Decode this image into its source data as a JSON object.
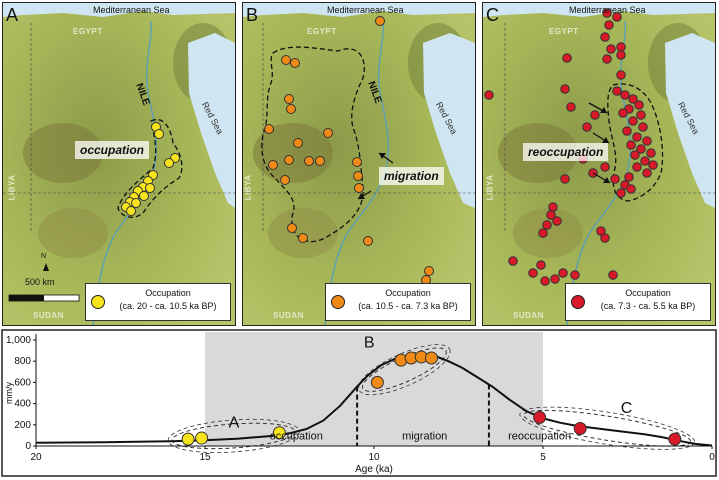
{
  "panels": [
    {
      "letter": "A",
      "sea_label": "Mediterranean Sea",
      "countries": {
        "egypt": "EGYPT",
        "libya": "LIBYA",
        "sudan": "SUDAN"
      },
      "red_sea": "Red Sea",
      "river": "NILE",
      "tag": "occupation",
      "scale_label": "500 km",
      "north": "N",
      "legend": {
        "title": "Occupation",
        "range": "(ca. 20 - ca. 10.5 ka BP)",
        "color": "#f7e41c"
      }
    },
    {
      "letter": "B",
      "sea_label": "Mediterranean Sea",
      "countries": {
        "egypt": "EGYPT",
        "libya": "LIBYA",
        "sudan": "SUDAN"
      },
      "red_sea": "Red Sea",
      "river": "NILE",
      "tag": "migration",
      "legend": {
        "title": "Occupation",
        "range": "(ca. 10.5 - ca. 7.3 ka BP)",
        "color": "#f08a16"
      }
    },
    {
      "letter": "C",
      "sea_label": "Mediterranean Sea",
      "countries": {
        "egypt": "EGYPT",
        "libya": "LIBYA",
        "sudan": "SUDAN"
      },
      "red_sea": "Red Sea",
      "tag": "reoccupation",
      "legend": {
        "title": "Occupation",
        "range": "(ca. 7.3 - ca. 5.5 ka BP)",
        "color": "#d8192a"
      }
    }
  ],
  "chart_data": {
    "type": "line",
    "xlabel": "Age (ka)",
    "ylabel": "mm/y",
    "xlim": [
      20,
      0
    ],
    "ylim": [
      0,
      1000
    ],
    "x_ticks": [
      "20",
      "15",
      "10",
      "5",
      "0"
    ],
    "y_ticks": [
      "0",
      "200",
      "400",
      "600",
      "800",
      "1,000"
    ],
    "shaded_range": [
      15,
      5
    ],
    "curve": {
      "x": [
        20,
        18,
        16,
        15,
        14,
        13,
        12.5,
        12,
        11.5,
        11,
        10.5,
        10.2,
        9.8,
        9.4,
        9,
        8.6,
        8.2,
        7.8,
        7.4,
        7,
        6.5,
        6,
        5.5,
        5,
        4.5,
        4,
        3,
        2,
        1.5,
        1,
        0.5,
        0
      ],
      "y": [
        30,
        35,
        45,
        55,
        70,
        95,
        120,
        160,
        240,
        380,
        560,
        660,
        760,
        820,
        850,
        860,
        850,
        800,
        740,
        660,
        560,
        440,
        330,
        260,
        220,
        190,
        150,
        110,
        85,
        50,
        20,
        5
      ]
    },
    "series": [
      {
        "name": "A",
        "color": "#f7e41c",
        "x": [
          15.5,
          15.1,
          12.8
        ],
        "y": [
          65,
          75,
          125
        ]
      },
      {
        "name": "B",
        "color": "#f08a16",
        "x": [
          9.9,
          9.2,
          8.9,
          8.6,
          8.3
        ],
        "y": [
          600,
          810,
          830,
          840,
          830
        ]
      },
      {
        "name": "C",
        "color": "#d8192a",
        "x": [
          5.1,
          3.9,
          1.1
        ],
        "y": [
          270,
          165,
          65
        ]
      }
    ],
    "dividers_x": [
      10.5,
      6.6
    ],
    "phase_labels": {
      "occupation": "occupation",
      "migration": "migration",
      "reoccupation": "reoccupation"
    },
    "group_labels": {
      "A": "A",
      "B": "B",
      "C": "C"
    }
  }
}
